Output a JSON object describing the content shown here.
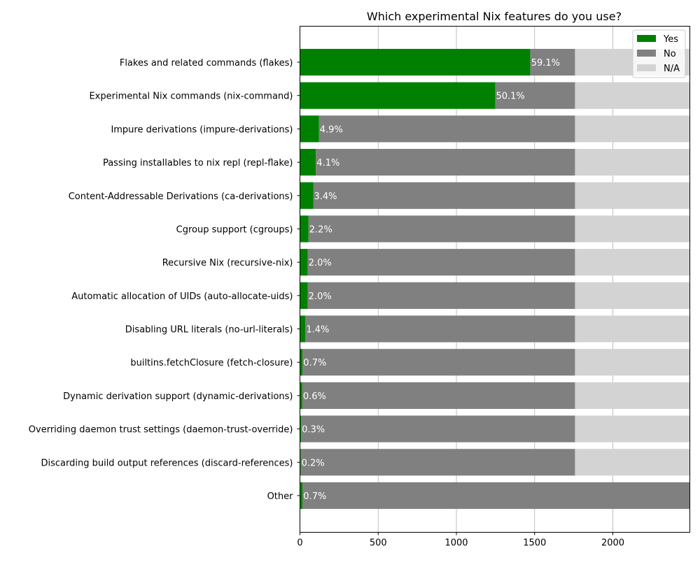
{
  "chart_data": {
    "type": "bar",
    "orientation": "horizontal",
    "stacked": true,
    "title": "Which experimental Nix features do you use?",
    "xlabel": "",
    "ylabel": "",
    "xlim": [
      0,
      2492
    ],
    "xticks": [
      0,
      500,
      1000,
      1500,
      2000
    ],
    "grid": "x",
    "legend_position": "top-right",
    "categories": [
      "Flakes and related commands (flakes)",
      "Experimental Nix commands (nix-command)",
      "Impure derivations (impure-derivations)",
      "Passing installables to nix repl (repl-flake)",
      "Content-Addressable Derivations (ca-derivations)",
      "Cgroup support (cgroups)",
      "Recursive Nix (recursive-nix)",
      "Automatic allocation of UIDs (auto-allocate-uids)",
      "Disabling URL literals (no-url-literals)",
      "builtins.fetchClosure (fetch-closure)",
      "Dynamic derivation support (dynamic-derivations)",
      "Overriding daemon trust settings (daemon-trust-override)",
      "Discarding build output references (discard-references)",
      "Other"
    ],
    "series": [
      {
        "name": "Yes",
        "color": "#008000",
        "values": [
          1473,
          1248,
          122,
          102,
          85,
          55,
          50,
          50,
          35,
          17,
          15,
          7,
          5,
          17
        ]
      },
      {
        "name": "No",
        "color": "#808080",
        "values": [
          285,
          510,
          1636,
          1656,
          1673,
          1703,
          1708,
          1708,
          1723,
          1741,
          1743,
          1751,
          1753,
          2475
        ]
      },
      {
        "name": "N/A",
        "color": "#d3d3d3",
        "values": [
          734,
          734,
          734,
          734,
          734,
          734,
          734,
          734,
          734,
          734,
          734,
          734,
          734,
          0
        ]
      }
    ],
    "data_labels": [
      "59.1%",
      "50.1%",
      "4.9%",
      "4.1%",
      "3.4%",
      "2.2%",
      "2.0%",
      "2.0%",
      "1.4%",
      "0.7%",
      "0.6%",
      "0.3%",
      "0.2%",
      "0.7%"
    ]
  }
}
